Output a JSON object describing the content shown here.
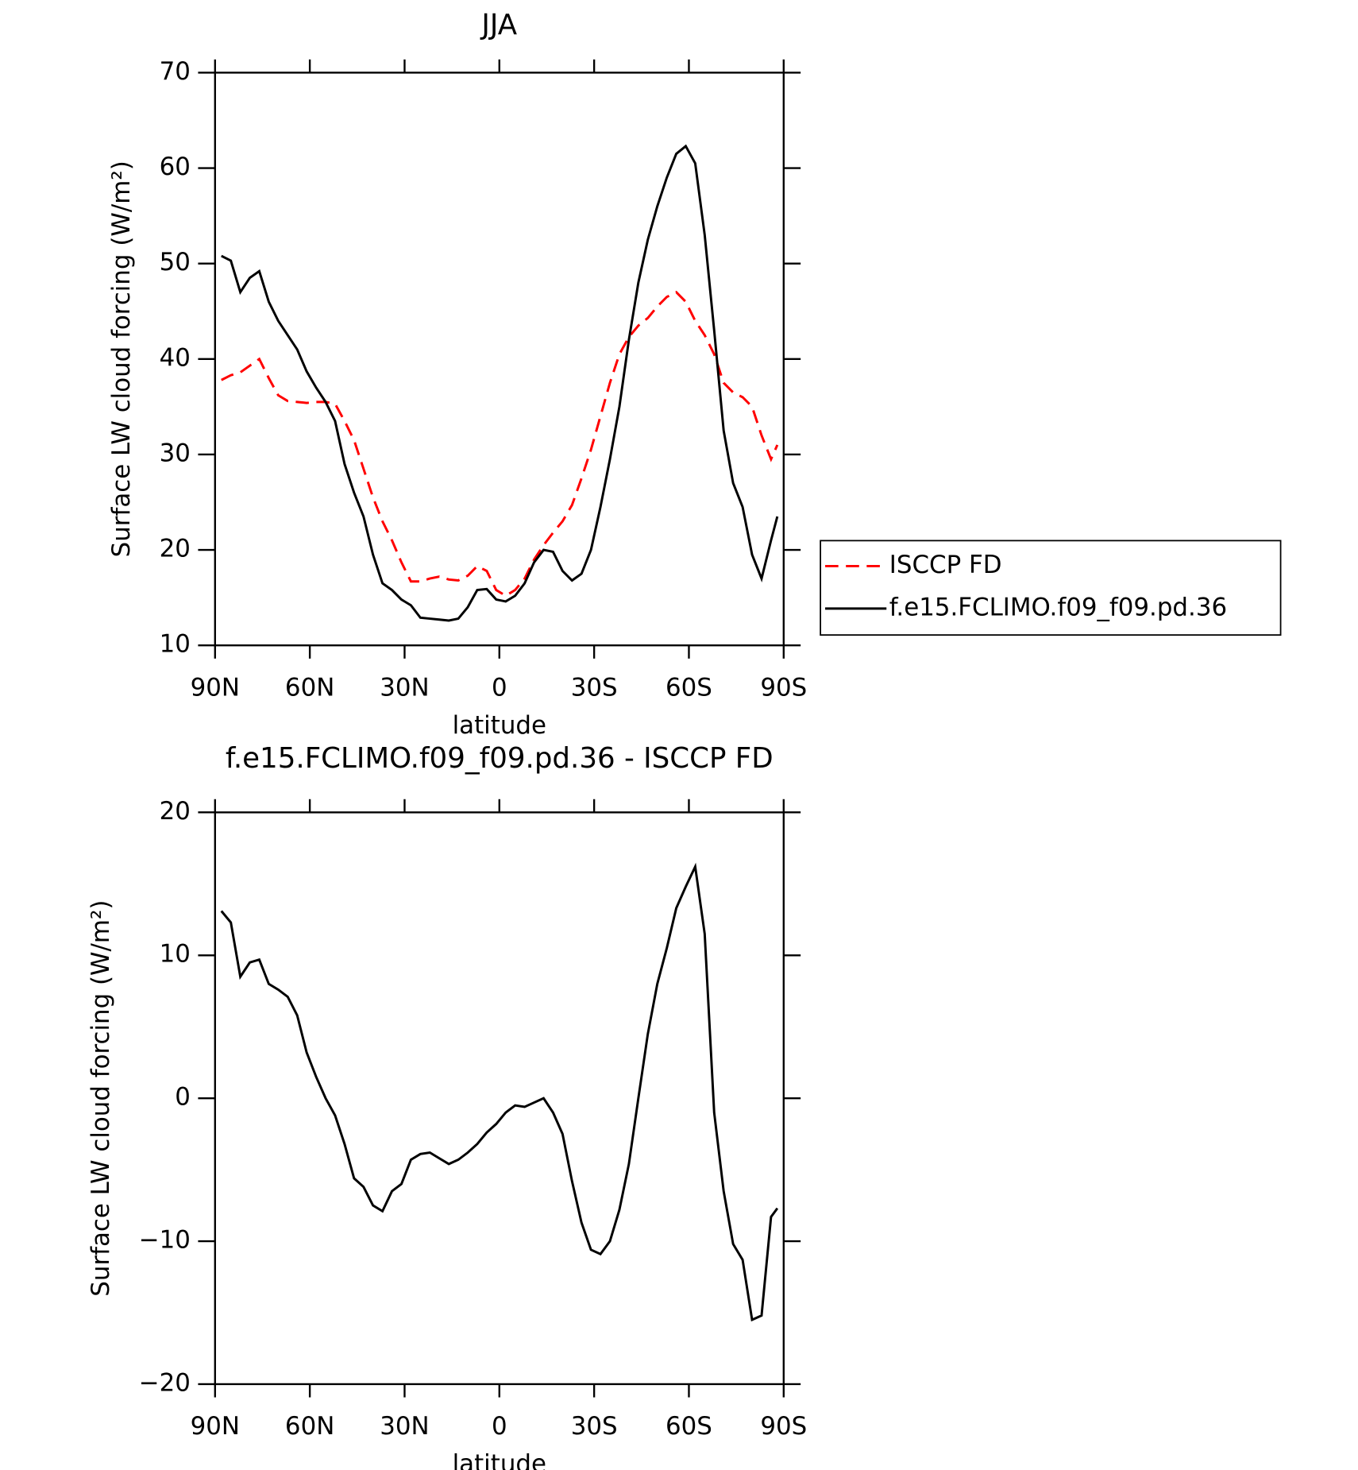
{
  "chart_data": [
    {
      "type": "line",
      "title": "JJA",
      "xlabel": "latitude",
      "ylabel": "Surface LW cloud forcing (W/m²)",
      "xlim": [
        90,
        -90
      ],
      "ylim": [
        10,
        70
      ],
      "xticks": [
        {
          "value": 90,
          "label": "90N"
        },
        {
          "value": 60,
          "label": "60N"
        },
        {
          "value": 30,
          "label": "30N"
        },
        0,
        {
          "value": -30,
          "label": "30S"
        },
        {
          "value": -60,
          "label": "60S"
        },
        {
          "value": -90,
          "label": "90S"
        }
      ],
      "yticks": [
        10,
        20,
        30,
        40,
        50,
        60,
        70
      ],
      "legend": "right",
      "x": [
        88,
        85,
        82,
        79,
        76,
        73,
        70,
        67,
        64,
        61,
        58,
        55,
        52,
        49,
        46,
        43,
        40,
        37,
        34,
        31,
        28,
        25,
        22,
        19,
        16,
        13,
        10,
        7,
        4,
        1,
        -2,
        -5,
        -8,
        -11,
        -14,
        -17,
        -20,
        -23,
        -26,
        -29,
        -32,
        -35,
        -38,
        -41,
        -44,
        -47,
        -50,
        -53,
        -56,
        -59,
        -62,
        -65,
        -68,
        -71,
        -74,
        -77,
        -80,
        -83,
        -86,
        -88
      ],
      "series": [
        {
          "name": "ISCCP FD",
          "color": "#ff0000",
          "dash": "dashed",
          "values": [
            37.8,
            38.3,
            38.6,
            39.3,
            40,
            38,
            36.2,
            35.6,
            35.5,
            35.4,
            35.5,
            35.5,
            35.3,
            33.5,
            31.5,
            28.5,
            25.5,
            23,
            21,
            18.7,
            16.7,
            16.7,
            17,
            17.2,
            16.9,
            16.8,
            17.3,
            18.3,
            17.8,
            15.8,
            15.2,
            15.8,
            17,
            19,
            20.5,
            21.8,
            23,
            24.7,
            27.5,
            30.5,
            34,
            37.5,
            40.5,
            42.3,
            43.5,
            44.3,
            45.5,
            46.5,
            47,
            46,
            44,
            42.5,
            40.5,
            37.5,
            36.5,
            36,
            35,
            32,
            29.5,
            31
          ]
        },
        {
          "name": "f.e15.FCLIMO.f09_f09.pd.36",
          "color": "#000000",
          "dash": "solid",
          "values": [
            50.8,
            50.3,
            47,
            48.5,
            49.2,
            46,
            44,
            42.5,
            41,
            38.7,
            37,
            35.5,
            33.5,
            29,
            26,
            23.5,
            19.5,
            16.5,
            15.8,
            14.8,
            14.2,
            12.9,
            12.8,
            12.7,
            12.6,
            12.8,
            14,
            15.8,
            15.9,
            14.8,
            14.6,
            15.2,
            16.5,
            18.7,
            20,
            19.8,
            17.8,
            16.8,
            17.5,
            20,
            24.5,
            29.5,
            35,
            42,
            48,
            52.5,
            56,
            59,
            61.5,
            62.3,
            60.5,
            53,
            43,
            32.5,
            27,
            24.5,
            19.5,
            17,
            21,
            23.5
          ]
        }
      ]
    },
    {
      "type": "line",
      "title": "f.e15.FCLIMO.f09_f09.pd.36 - ISCCP FD",
      "xlabel": "latitude",
      "ylabel": "Surface LW cloud forcing (W/m²)",
      "xlim": [
        90,
        -90
      ],
      "ylim": [
        -20,
        20
      ],
      "xticks": [
        {
          "value": 90,
          "label": "90N"
        },
        {
          "value": 60,
          "label": "60N"
        },
        {
          "value": 30,
          "label": "30N"
        },
        0,
        {
          "value": -30,
          "label": "30S"
        },
        {
          "value": -60,
          "label": "60S"
        },
        {
          "value": -90,
          "label": "90S"
        }
      ],
      "yticks": [
        {
          "value": -20,
          "label": "−20"
        },
        {
          "value": -10,
          "label": "−10"
        },
        0,
        10,
        20
      ],
      "x": [
        88,
        85,
        82,
        79,
        76,
        73,
        70,
        67,
        64,
        61,
        58,
        55,
        52,
        49,
        46,
        43,
        40,
        37,
        34,
        31,
        28,
        25,
        22,
        19,
        16,
        13,
        10,
        7,
        4,
        1,
        -2,
        -5,
        -8,
        -11,
        -14,
        -17,
        -20,
        -23,
        -26,
        -29,
        -32,
        -35,
        -38,
        -41,
        -44,
        -47,
        -50,
        -53,
        -56,
        -59,
        -62,
        -65,
        -68,
        -71,
        -74,
        -77,
        -80,
        -83,
        -86,
        -88
      ],
      "series": [
        {
          "color": "#000000",
          "dash": "solid",
          "values": [
            13.1,
            12.3,
            8.5,
            9.5,
            9.7,
            8,
            7.6,
            7.1,
            5.8,
            3.2,
            1.5,
            0,
            -1.2,
            -3.2,
            -5.6,
            -6.2,
            -7.5,
            -7.9,
            -6.5,
            -6,
            -4.3,
            -3.9,
            -3.8,
            -4.2,
            -4.6,
            -4.3,
            -3.8,
            -3.2,
            -2.4,
            -1.8,
            -1,
            -0.5,
            -0.6,
            -0.3,
            0,
            -1,
            -2.5,
            -5.8,
            -8.7,
            -10.6,
            -10.9,
            -10,
            -7.8,
            -4.6,
            0,
            4.5,
            8,
            10.5,
            13.3,
            14.8,
            16.2,
            11.5,
            -1,
            -6.5,
            -10.2,
            -11.3,
            -15.5,
            -15.2,
            -8.3,
            -7.7
          ]
        }
      ]
    }
  ]
}
